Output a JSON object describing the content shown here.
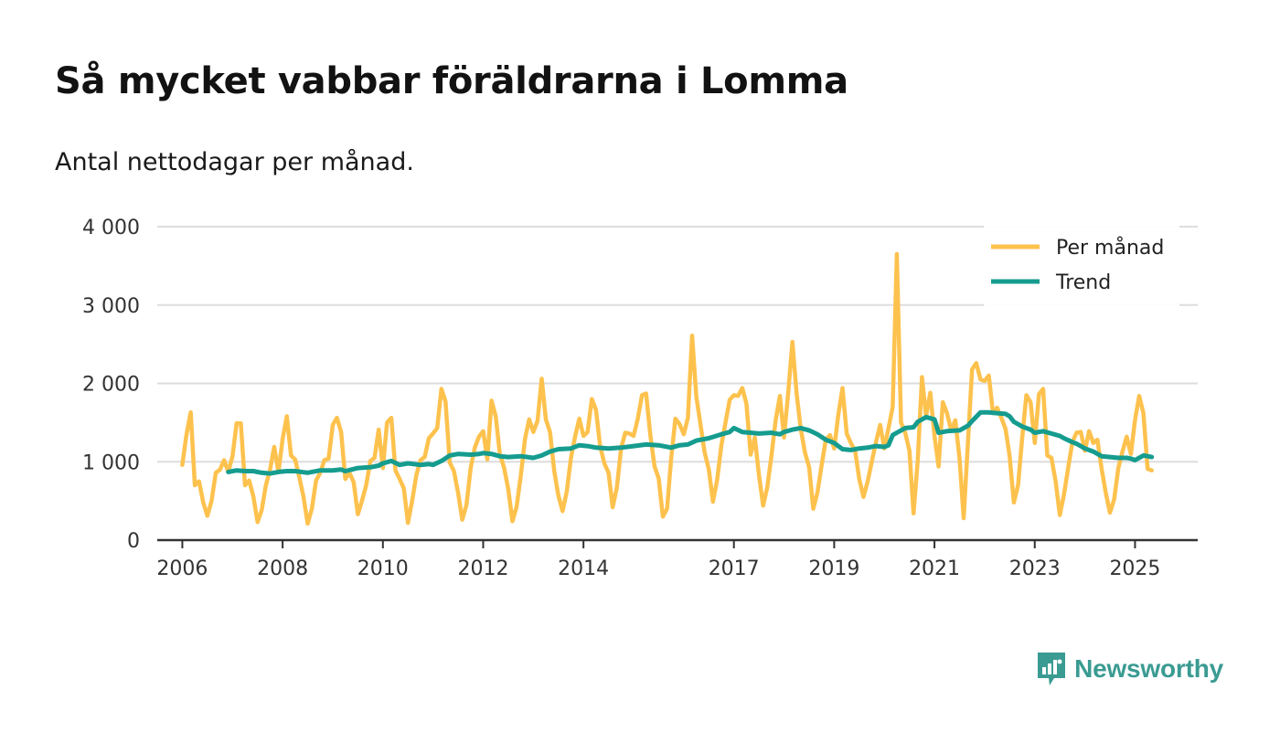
{
  "title": "Så mycket vabbar föräldrarna i Lomma",
  "subtitle": "Antal nettodagar per månad.",
  "brand": "Newsworthy",
  "colors": {
    "per_month": "#fdc24e",
    "trend": "#159c8f",
    "grid": "#dddddd",
    "axis": "#333333",
    "brand": "#3a9b92"
  },
  "chart_data": {
    "type": "line",
    "title": "Så mycket vabbar föräldrarna i Lomma",
    "subtitle": "Antal nettodagar per månad.",
    "xlabel": "",
    "ylabel": "",
    "ylim": [
      0,
      4000
    ],
    "xlim": [
      2005.5,
      2026.25
    ],
    "grid": true,
    "legend_position": "top-right",
    "yticks": [
      0,
      1000,
      2000,
      3000,
      4000
    ],
    "ytick_labels": [
      "0",
      "1 000",
      "2 000",
      "3 000",
      "4 000"
    ],
    "xticks": [
      2006,
      2008,
      2010,
      2012,
      2014,
      2017,
      2019,
      2021,
      2023,
      2025
    ],
    "xtick_labels": [
      "2006",
      "2008",
      "2010",
      "2012",
      "2014",
      "2017",
      "2019",
      "2021",
      "2023",
      "2025"
    ],
    "series": [
      {
        "name": "Per månad",
        "x": [
          2006.0,
          2006.083,
          2006.167,
          2006.25,
          2006.333,
          2006.417,
          2006.5,
          2006.583,
          2006.667,
          2006.75,
          2006.833,
          2006.917,
          2007.0,
          2007.083,
          2007.167,
          2007.25,
          2007.333,
          2007.417,
          2007.5,
          2007.583,
          2007.667,
          2007.75,
          2007.833,
          2007.917,
          2008.0,
          2008.083,
          2008.167,
          2008.25,
          2008.333,
          2008.417,
          2008.5,
          2008.583,
          2008.667,
          2008.75,
          2008.833,
          2008.917,
          2009.0,
          2009.083,
          2009.167,
          2009.25,
          2009.333,
          2009.417,
          2009.5,
          2009.583,
          2009.667,
          2009.75,
          2009.833,
          2009.917,
          2010.0,
          2010.083,
          2010.167,
          2010.25,
          2010.333,
          2010.417,
          2010.5,
          2010.583,
          2010.667,
          2010.75,
          2010.833,
          2010.917,
          2011.0,
          2011.083,
          2011.167,
          2011.25,
          2011.333,
          2011.417,
          2011.5,
          2011.583,
          2011.667,
          2011.75,
          2011.833,
          2011.917,
          2012.0,
          2012.083,
          2012.167,
          2012.25,
          2012.333,
          2012.417,
          2012.5,
          2012.583,
          2012.667,
          2012.75,
          2012.833,
          2012.917,
          2013.0,
          2013.083,
          2013.167,
          2013.25,
          2013.333,
          2013.417,
          2013.5,
          2013.583,
          2013.667,
          2013.75,
          2013.833,
          2013.917,
          2014.0,
          2014.083,
          2014.167,
          2014.25,
          2014.333,
          2014.417,
          2014.5,
          2014.583,
          2014.667,
          2014.75,
          2014.833,
          2014.917,
          2015.0,
          2015.083,
          2015.167,
          2015.25,
          2015.333,
          2015.417,
          2015.5,
          2015.583,
          2015.667,
          2015.75,
          2015.833,
          2015.917,
          2016.0,
          2016.083,
          2016.167,
          2016.25,
          2016.333,
          2016.417,
          2016.5,
          2016.583,
          2016.667,
          2016.75,
          2016.833,
          2016.917,
          2017.0,
          2017.083,
          2017.167,
          2017.25,
          2017.333,
          2017.417,
          2017.5,
          2017.583,
          2017.667,
          2017.75,
          2017.833,
          2017.917,
          2018.0,
          2018.083,
          2018.167,
          2018.25,
          2018.333,
          2018.417,
          2018.5,
          2018.583,
          2018.667,
          2018.75,
          2018.833,
          2018.917,
          2019.0,
          2019.083,
          2019.167,
          2019.25,
          2019.333,
          2019.417,
          2019.5,
          2019.583,
          2019.667,
          2019.75,
          2019.833,
          2019.917,
          2020.0,
          2020.083,
          2020.167,
          2020.25,
          2020.333,
          2020.417,
          2020.5,
          2020.583,
          2020.667,
          2020.75,
          2020.833,
          2020.917,
          2021.0,
          2021.083,
          2021.167,
          2021.25,
          2021.333,
          2021.417,
          2021.5,
          2021.583,
          2021.667,
          2021.75,
          2021.833,
          2021.917,
          2022.0,
          2022.083,
          2022.167,
          2022.25,
          2022.333,
          2022.417,
          2022.5,
          2022.583,
          2022.667,
          2022.75,
          2022.833,
          2022.917,
          2023.0,
          2023.083,
          2023.167,
          2023.25,
          2023.333,
          2023.417,
          2023.5,
          2023.583,
          2023.667,
          2023.75,
          2023.833,
          2023.917,
          2024.0,
          2024.083,
          2024.167,
          2024.25,
          2024.333,
          2024.417,
          2024.5,
          2024.583,
          2024.667,
          2024.75,
          2024.833,
          2024.917,
          2025.0,
          2025.083,
          2025.167,
          2025.25,
          2025.333
        ],
        "values": [
          960,
          1350,
          1630,
          700,
          750,
          480,
          310,
          500,
          860,
          900,
          1020,
          870,
          1070,
          1490,
          1490,
          700,
          760,
          560,
          230,
          380,
          700,
          900,
          1190,
          870,
          1290,
          1580,
          1080,
          1030,
          800,
          550,
          210,
          400,
          760,
          860,
          1020,
          1040,
          1470,
          1560,
          1380,
          780,
          860,
          740,
          330,
          500,
          700,
          1010,
          1050,
          1410,
          920,
          1500,
          1560,
          890,
          780,
          660,
          220,
          500,
          830,
          1020,
          1060,
          1300,
          1360,
          1430,
          1930,
          1770,
          990,
          880,
          600,
          260,
          450,
          920,
          1180,
          1320,
          1390,
          1030,
          1780,
          1580,
          1100,
          920,
          650,
          240,
          430,
          820,
          1290,
          1540,
          1380,
          1520,
          2060,
          1540,
          1380,
          880,
          570,
          370,
          620,
          1050,
          1320,
          1550,
          1330,
          1380,
          1800,
          1660,
          1200,
          980,
          860,
          420,
          670,
          1170,
          1370,
          1360,
          1330,
          1550,
          1850,
          1870,
          1340,
          940,
          790,
          300,
          400,
          1040,
          1550,
          1480,
          1350,
          1560,
          2610,
          1830,
          1480,
          1120,
          900,
          490,
          770,
          1210,
          1500,
          1790,
          1850,
          1840,
          1940,
          1740,
          1090,
          1310,
          830,
          440,
          680,
          1080,
          1530,
          1840,
          1310,
          1880,
          2530,
          1870,
          1420,
          1120,
          930,
          400,
          610,
          960,
          1280,
          1340,
          1170,
          1600,
          1940,
          1360,
          1240,
          1140,
          780,
          550,
          750,
          1000,
          1250,
          1470,
          1170,
          1430,
          1700,
          3650,
          1500,
          1370,
          1140,
          340,
          1020,
          2080,
          1580,
          1880,
          1330,
          940,
          1760,
          1620,
          1400,
          1530,
          1040,
          280,
          1250,
          2180,
          2260,
          2050,
          2030,
          2100,
          1620,
          1690,
          1560,
          1420,
          1070,
          480,
          700,
          1300,
          1850,
          1760,
          1240,
          1860,
          1930,
          1080,
          1050,
          750,
          320,
          580,
          920,
          1250,
          1370,
          1380,
          1140,
          1390,
          1240,
          1280,
          910,
          600,
          350,
          520,
          920,
          1130,
          1320,
          1100,
          1530,
          1840,
          1620,
          910,
          890
        ]
      },
      {
        "name": "Trend",
        "x": [
          2006.917,
          2007.083,
          2007.25,
          2007.417,
          2007.583,
          2007.75,
          2007.917,
          2008.083,
          2008.25,
          2008.5,
          2008.75,
          2009.0,
          2009.167,
          2009.25,
          2009.5,
          2009.75,
          2009.917,
          2010.0,
          2010.167,
          2010.333,
          2010.5,
          2010.75,
          2010.917,
          2011.0,
          2011.167,
          2011.333,
          2011.5,
          2011.75,
          2011.917,
          2012.0,
          2012.167,
          2012.333,
          2012.5,
          2012.75,
          2013.0,
          2013.167,
          2013.333,
          2013.5,
          2013.75,
          2013.917,
          2014.083,
          2014.25,
          2014.5,
          2014.75,
          2015.0,
          2015.25,
          2015.5,
          2015.75,
          2015.917,
          2016.083,
          2016.25,
          2016.5,
          2016.75,
          2016.917,
          2017.0,
          2017.167,
          2017.333,
          2017.5,
          2017.75,
          2017.917,
          2018.0,
          2018.167,
          2018.333,
          2018.5,
          2018.667,
          2018.833,
          2019.0,
          2019.167,
          2019.333,
          2019.5,
          2019.667,
          2019.833,
          2020.0,
          2020.083,
          2020.167,
          2020.25,
          2020.417,
          2020.583,
          2020.667,
          2020.833,
          2021.0,
          2021.083,
          2021.167,
          2021.25,
          2021.5,
          2021.667,
          2021.75,
          2021.917,
          2022.083,
          2022.25,
          2022.417,
          2022.5,
          2022.583,
          2022.75,
          2022.917,
          2023.0,
          2023.167,
          2023.333,
          2023.5,
          2023.583,
          2023.75,
          2023.833,
          2024.0,
          2024.167,
          2024.333,
          2024.5,
          2024.667,
          2024.833,
          2024.917,
          2025.0,
          2025.167,
          2025.25,
          2025.333
        ],
        "values": [
          870,
          890,
          880,
          880,
          860,
          850,
          870,
          880,
          880,
          860,
          890,
          890,
          900,
          880,
          920,
          930,
          950,
          980,
          1010,
          960,
          980,
          960,
          970,
          960,
          1010,
          1080,
          1100,
          1090,
          1100,
          1110,
          1100,
          1070,
          1060,
          1070,
          1050,
          1080,
          1130,
          1160,
          1170,
          1210,
          1200,
          1180,
          1170,
          1180,
          1200,
          1220,
          1210,
          1180,
          1210,
          1220,
          1270,
          1300,
          1350,
          1380,
          1430,
          1380,
          1370,
          1360,
          1370,
          1350,
          1380,
          1410,
          1430,
          1400,
          1350,
          1280,
          1240,
          1160,
          1150,
          1170,
          1180,
          1200,
          1190,
          1210,
          1340,
          1370,
          1430,
          1440,
          1510,
          1570,
          1540,
          1370,
          1380,
          1390,
          1400,
          1460,
          1520,
          1630,
          1630,
          1620,
          1610,
          1580,
          1510,
          1450,
          1410,
          1370,
          1390,
          1360,
          1330,
          1300,
          1250,
          1230,
          1170,
          1130,
          1070,
          1060,
          1050,
          1050,
          1040,
          1020,
          1080,
          1070,
          1060
        ]
      }
    ]
  }
}
